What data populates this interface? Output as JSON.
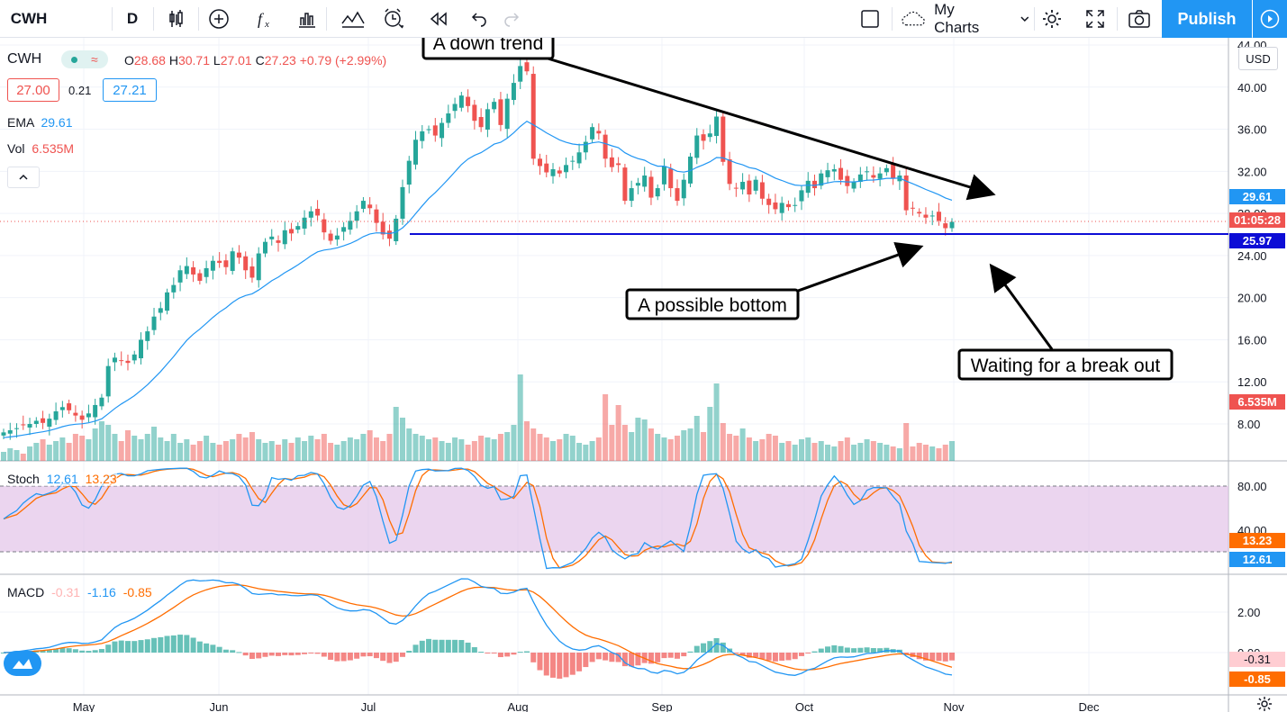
{
  "toolbar": {
    "symbol": "CWH",
    "interval": "D",
    "my_charts": "My Charts",
    "publish": "Publish",
    "icons": [
      "bars-style-icon",
      "add-compare-icon",
      "indicators-icon",
      "templates-icon",
      "financials-icon",
      "alert-icon",
      "replay-icon",
      "undo-icon",
      "redo-icon",
      "layout-icon",
      "cloud-icon",
      "settings-icon",
      "fullscreen-icon",
      "snapshot-icon",
      "play-icon"
    ]
  },
  "legend": {
    "symbol": "CWH",
    "o_label": "O",
    "o": "28.68",
    "h_label": "H",
    "h": "30.71",
    "l_label": "L",
    "l": "27.01",
    "c_label": "C",
    "c": "27.23",
    "change": "+0.79 (+2.99%)",
    "bid": "27.00",
    "spread": "0.21",
    "ask": "27.21",
    "ema_label": "EMA",
    "ema_value": "29.61",
    "vol_label": "Vol",
    "vol_value": "6.535M"
  },
  "currency": "USD",
  "price_axis": {
    "ticks": [
      "44.00",
      "40.00",
      "36.00",
      "32.00",
      "28.00",
      "24.00",
      "20.00",
      "16.00",
      "12.00",
      "8.00"
    ],
    "labels": {
      "ema": "29.61",
      "countdown": "01:05:28",
      "support": "25.97",
      "volume": "6.535M"
    }
  },
  "stoch": {
    "label": "Stoch",
    "k": "12.61",
    "d": "13.23",
    "ticks": [
      "80.00",
      "40.00"
    ]
  },
  "macd": {
    "label": "MACD",
    "hist": "-0.31",
    "macd": "-1.16",
    "signal": "-0.85",
    "ticks": [
      "2.00",
      "0.00"
    ],
    "labels": {
      "hist": "-0.31",
      "signal": "-0.85"
    }
  },
  "time_axis": [
    "May",
    "Jun",
    "Jul",
    "Aug",
    "Sep",
    "Oct",
    "Nov",
    "Dec"
  ],
  "annotations": {
    "downtrend": "A down trend",
    "bottom": "A possible bottom",
    "breakout": "Waiting for a break out"
  },
  "colors": {
    "up": "#26a69a",
    "down": "#ef5350",
    "ema": "#2196f3",
    "stoch_k": "#2196f3",
    "stoch_d": "#ff6d00",
    "stoch_band": "#e1bee7",
    "support": "#0d0dd6",
    "accent": "#2196f3"
  }
}
